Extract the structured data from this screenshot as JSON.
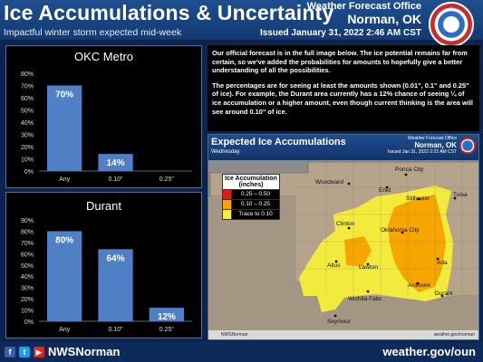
{
  "header": {
    "title": "Ice Accumulations & Uncertainty",
    "subtitle": "Impactful winter storm expected mid-week",
    "office": "Weather Forecast Office",
    "city": "Norman, OK",
    "issued": "Issued January 31, 2022 2:46 AM CST"
  },
  "text": {
    "para1": "Our official forecast is in the full image below. The ice potential remains far from certain, so we've added the probabilities for amounts to hopefully give a better understanding of all the possibilities.",
    "para2": "The percentages are for seeing at least the amounts shown (0.01\", 0.1\" and 0.25\" of ice). For example, the Durant area currently has a 12% chance of seeing ¼ of ice accumulation or a higher amount, even though current thinking is the area will see around 0.10\" of ice."
  },
  "map": {
    "title": "Expected Ice Accumulations",
    "day": "Wednesday",
    "office": "Weather Forecast Office",
    "city": "Norman, OK",
    "issued": "Issued Jan 31, 2022 2:22 AM CST",
    "legend_title": "Ice Accumulation (inches)",
    "legend": [
      {
        "label": "0.25 – 0.50",
        "color": "#e31a1c"
      },
      {
        "label": "0.10 – 0.25",
        "color": "#f7a600"
      },
      {
        "label": "Trace to 0.10",
        "color": "#f5ef3a"
      }
    ],
    "cities": {
      "ponca": "Ponca City",
      "woodward": "Woodward",
      "enid": "Enid",
      "stillwater": "Stillwater",
      "tulsa": "Tulsa",
      "clinton": "Clinton",
      "okc": "Oklahoma City",
      "altus": "Altus",
      "lawton": "Lawton",
      "ada": "Ada",
      "ardmore": "Ardmore",
      "wichita": "Wichita Falls",
      "durant": "Durant",
      "seymour": "Seymour"
    },
    "foot_handle": "NWSNorman",
    "foot_site": "weather.gov/norman"
  },
  "footer": {
    "handle": "NWSNorman",
    "site": "weather.gov/oun"
  },
  "chart_data": [
    {
      "type": "bar",
      "title": "OKC Metro",
      "categories": [
        "Any",
        "0.10\"",
        "0.25\""
      ],
      "values": [
        70,
        14,
        0
      ],
      "data_labels": [
        "70%",
        "14%",
        ""
      ],
      "ylim": [
        0,
        80
      ],
      "yticks": [
        "0%",
        "10%",
        "20%",
        "30%",
        "40%",
        "50%",
        "60%",
        "70%",
        "80%"
      ],
      "bar_color": "#4f7fc4"
    },
    {
      "type": "bar",
      "title": "Durant",
      "categories": [
        "Any",
        "0.10\"",
        "0.25\""
      ],
      "values": [
        80,
        64,
        12
      ],
      "data_labels": [
        "80%",
        "64%",
        "12%"
      ],
      "ylim": [
        0,
        90
      ],
      "yticks": [
        "0%",
        "10%",
        "20%",
        "30%",
        "40%",
        "50%",
        "60%",
        "70%",
        "80%",
        "90%"
      ],
      "bar_color": "#4f7fc4"
    }
  ]
}
